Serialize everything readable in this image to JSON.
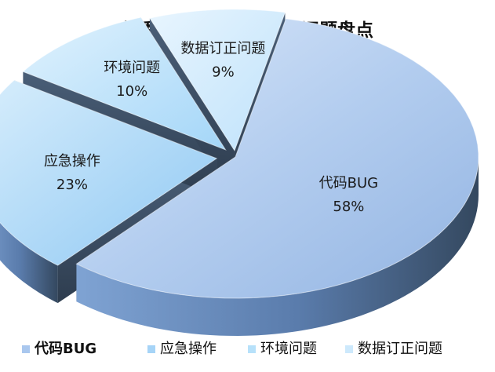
{
  "chart_data": {
    "type": "pie",
    "title": "某季度数据一致性线上问题盘点",
    "slices": [
      {
        "label": "代码BUG",
        "value": 58,
        "value_label": "58%",
        "color": "#a9c7ee"
      },
      {
        "label": "应急操作",
        "value": 23,
        "value_label": "23%",
        "color": "#a6d4f7"
      },
      {
        "label": "环境问题",
        "value": 10,
        "value_label": "10%",
        "color": "#b7e1fa"
      },
      {
        "label": "数据订正问题",
        "value": 9,
        "value_label": "9%",
        "color": "#cde9fc"
      }
    ],
    "legend": {
      "position": "bottom",
      "entries": [
        "代码BUG",
        "应急操作",
        "环境问题",
        "数据订正问题"
      ]
    }
  }
}
